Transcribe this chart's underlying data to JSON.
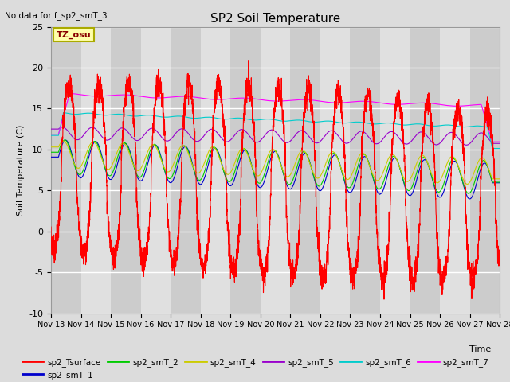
{
  "title": "SP2 Soil Temperature",
  "no_data_text": "No data for f_sp2_smT_3",
  "tz_label": "TZ_osu",
  "xlabel": "Time",
  "ylabel": "Soil Temperature (C)",
  "ylim": [
    -10,
    25
  ],
  "yticks": [
    -10,
    -5,
    0,
    5,
    10,
    15,
    20,
    25
  ],
  "xtick_labels": [
    "Nov 13",
    "Nov 14",
    "Nov 15",
    "Nov 16",
    "Nov 17",
    "Nov 18",
    "Nov 19",
    "Nov 20",
    "Nov 21",
    "Nov 22",
    "Nov 23",
    "Nov 24",
    "Nov 25",
    "Nov 26",
    "Nov 27",
    "Nov 28"
  ],
  "colors": {
    "sp2_Tsurface": "#ff0000",
    "sp2_smT_1": "#0000cc",
    "sp2_smT_2": "#00cc00",
    "sp2_smT_4": "#cccc00",
    "sp2_smT_5": "#9900cc",
    "sp2_smT_6": "#00cccc",
    "sp2_smT_7": "#ff00ff"
  },
  "bg_color": "#dcdcdc",
  "grid_color": "#ffffff",
  "figsize": [
    6.4,
    4.8
  ],
  "dpi": 100
}
